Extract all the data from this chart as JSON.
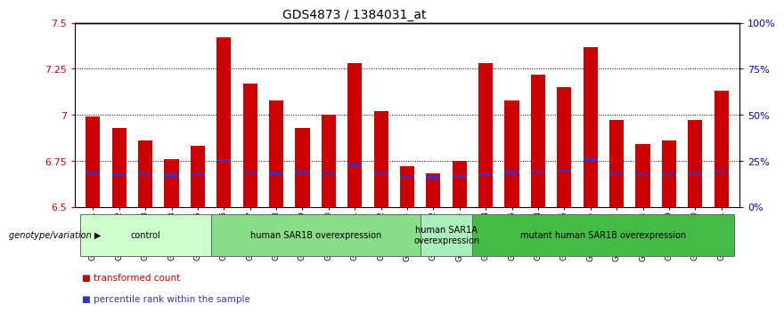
{
  "title": "GDS4873 / 1384031_at",
  "samples": [
    "GSM1279591",
    "GSM1279592",
    "GSM1279593",
    "GSM1279594",
    "GSM1279595",
    "GSM1279596",
    "GSM1279597",
    "GSM1279598",
    "GSM1279599",
    "GSM1279600",
    "GSM1279601",
    "GSM1279602",
    "GSM1279603",
    "GSM1279612",
    "GSM1279613",
    "GSM1279614",
    "GSM1279615",
    "GSM1279604",
    "GSM1279605",
    "GSM1279606",
    "GSM1279607",
    "GSM1279608",
    "GSM1279609",
    "GSM1279610",
    "GSM1279611"
  ],
  "transformed_count": [
    6.99,
    6.93,
    6.86,
    6.76,
    6.83,
    7.42,
    7.17,
    7.08,
    6.93,
    7.0,
    7.28,
    7.02,
    6.72,
    6.68,
    6.75,
    7.28,
    7.08,
    7.22,
    7.15,
    7.37,
    6.97,
    6.84,
    6.86,
    6.97,
    7.13
  ],
  "percentile_rank_value": [
    6.685,
    6.675,
    6.672,
    6.67,
    6.671,
    6.755,
    6.682,
    6.68,
    6.688,
    6.681,
    6.728,
    6.681,
    6.665,
    6.66,
    6.668,
    6.675,
    6.688,
    6.69,
    6.698,
    6.757,
    6.682,
    6.671,
    6.672,
    6.681,
    6.692
  ],
  "percentile_bar_height": 0.012,
  "ymin": 6.5,
  "ymax": 7.5,
  "yticks": [
    6.5,
    6.75,
    7.0,
    7.25,
    7.5
  ],
  "ytick_labels": [
    "6.5",
    "6.75",
    "7",
    "7.25",
    "7.5"
  ],
  "right_ytick_positions": [
    6.5,
    6.75,
    7.0,
    7.25,
    7.5
  ],
  "right_ytick_labels": [
    "0%",
    "25%",
    "50%",
    "75%",
    "100%"
  ],
  "bar_color_red": "#CC0000",
  "bar_color_blue": "#3333CC",
  "groups": [
    {
      "label": "control",
      "start": 0,
      "end": 5,
      "color": "#ccffcc"
    },
    {
      "label": "human SAR1B overexpression",
      "start": 5,
      "end": 13,
      "color": "#88dd88"
    },
    {
      "label": "human SAR1A\noverexpression",
      "start": 13,
      "end": 15,
      "color": "#aaeebb"
    },
    {
      "label": "mutant human SAR1B overexpression",
      "start": 15,
      "end": 25,
      "color": "#44bb44"
    }
  ],
  "genotype_label": "genotype/variation",
  "legend_items": [
    {
      "color": "#CC0000",
      "label": "transformed count"
    },
    {
      "color": "#3333CC",
      "label": "percentile rank within the sample"
    }
  ],
  "title_fontsize": 10,
  "bar_width": 0.55,
  "background_color": "#ffffff",
  "tick_label_color": "#CC0000",
  "right_tick_color": "#0000CC",
  "dotted_lines": [
    6.75,
    7.0,
    7.25
  ]
}
